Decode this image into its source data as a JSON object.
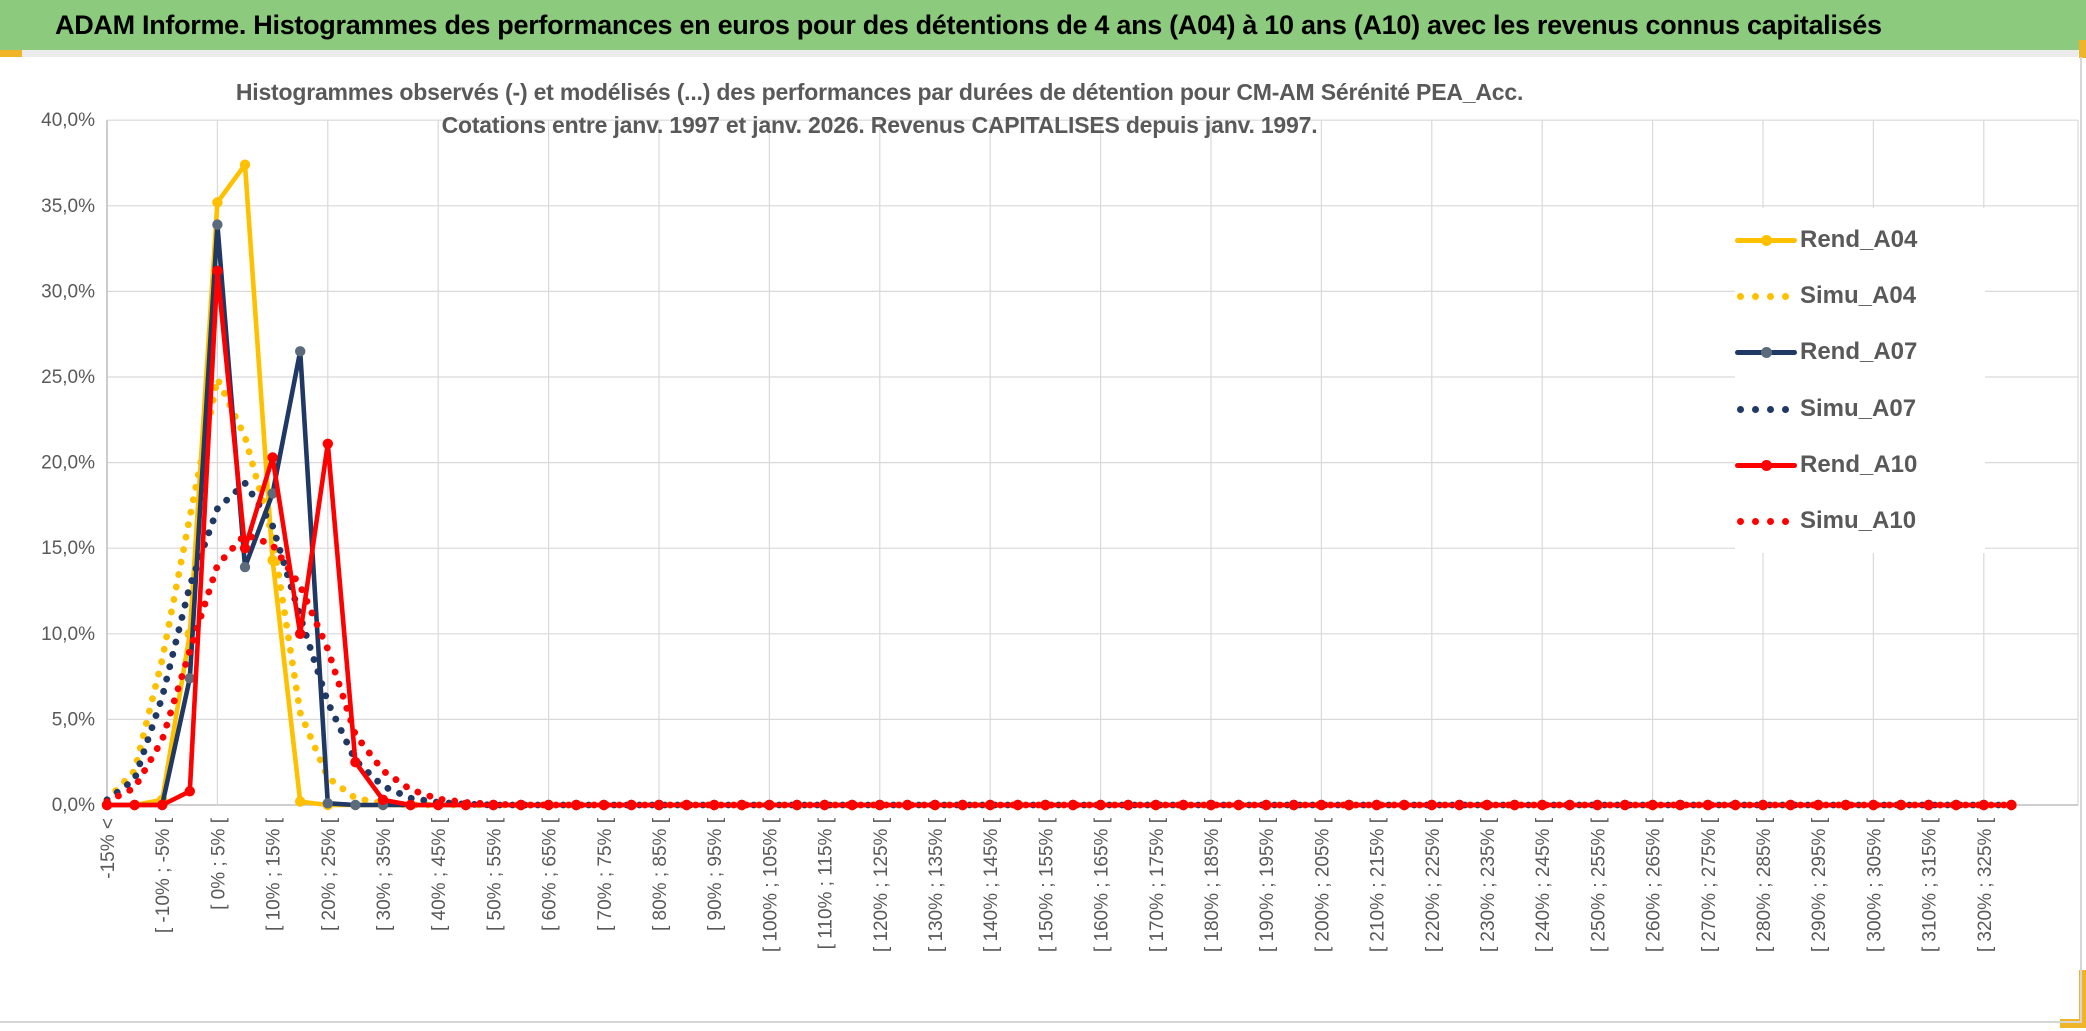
{
  "banner": {
    "title": "ADAM Informe. Histogrammes des performances en euros pour des détentions de 4 ans (A04) à 10 ans (A10) avec les revenus connus capitalisés"
  },
  "colors": {
    "banner_green": "#8CCA7D",
    "accent_yellow": "#F0B428",
    "grid": "#D9D9D9",
    "axis": "#BFBFBF",
    "text_gray": "#595959",
    "gold": "#FFC000",
    "navy": "#1F3864",
    "navy_marker": "#5B6B7C",
    "red": "#FF0000"
  },
  "chart_data": {
    "type": "line",
    "title_line1": "Histogrammes observés (-) et modélisés (...) des performances par durées de détention pour CM-AM Sérénité PEA_Acc.",
    "title_line2": "Cotations entre janv. 1997 et janv. 2026. Revenus CAPITALISES depuis janv. 1997.",
    "ylabel": "",
    "xlabel": "",
    "ylim": [
      0,
      40
    ],
    "grid": true,
    "legend_position": "right",
    "y_tick_labels": [
      "0,0%",
      "5,0%",
      "10,0%",
      "15,0%",
      "20,0%",
      "25,0%",
      "30,0%",
      "35,0%",
      "40,0%"
    ],
    "y_tick_values": [
      0,
      5,
      10,
      15,
      20,
      25,
      30,
      35,
      40
    ],
    "n_bins": 70,
    "label_every_bins": 2,
    "categories": [
      "-15% <",
      "[ -10% ; -5% [",
      "[ 0% ; 5% [",
      "[ 10% ; 15% [",
      "[ 20% ; 25% [",
      "[ 30% ; 35% [",
      "[ 40% ; 45% [",
      "[ 50% ; 55% [",
      "[ 60% ; 65% [",
      "[ 70% ; 75% [",
      "[ 80% ; 85% [",
      "[ 90% ; 95% [",
      "[ 100% ; 105% [",
      "[ 110% ; 115% [",
      "[ 120% ; 125% [",
      "[ 130% ; 135% [",
      "[ 140% ; 145% [",
      "[ 150% ; 155% [",
      "[ 160% ; 165% [",
      "[ 170% ; 175% [",
      "[ 180% ; 185% [",
      "[ 190% ; 195% [",
      "[ 200% ; 205% [",
      "[ 210% ; 215% [",
      "[ 220% ; 225% [",
      "[ 230% ; 235% [",
      "[ 240% ; 245% [",
      "[ 250% ; 255% [",
      "[ 260% ; 265% [",
      "[ 270% ; 275% [",
      "[ 280% ; 285% [",
      "[ 290% ; 295% [",
      "[ 300% ; 305% [",
      "[ 310% ; 315% [",
      "[ 320% ; 325% ["
    ],
    "series": [
      {
        "name": "Rend_A04",
        "style": "solid",
        "color": "#FFC000",
        "marker_color": "#FFC000",
        "values": [
          0,
          0,
          0.3,
          10,
          35.2,
          37.4,
          14.3,
          0.2,
          0,
          0,
          0,
          0,
          0,
          0,
          0
        ]
      },
      {
        "name": "Simu_A04",
        "style": "dotted",
        "color": "#FFC000",
        "values": [
          0.3,
          2,
          8.5,
          16.8,
          24.9,
          21.5,
          15.7,
          5.4,
          1.6,
          0.4,
          0.1,
          0,
          0,
          0,
          0
        ]
      },
      {
        "name": "Rend_A07",
        "style": "solid",
        "color": "#1F3864",
        "marker_color": "#5B6B7C",
        "values": [
          0,
          0,
          0,
          7.4,
          33.9,
          13.9,
          18.2,
          26.5,
          0.1,
          0,
          0,
          0,
          0,
          0,
          0
        ]
      },
      {
        "name": "Simu_A07",
        "style": "dotted",
        "color": "#1F3864",
        "values": [
          0.3,
          1.5,
          6.3,
          12.8,
          17.3,
          18.8,
          16.3,
          11,
          6,
          2.6,
          1.1,
          0.4,
          0.15,
          0.05,
          0
        ]
      },
      {
        "name": "Rend_A10",
        "style": "solid",
        "color": "#FF0000",
        "marker_color": "#FF0000",
        "values": [
          0,
          0,
          0,
          0.8,
          31.2,
          15,
          20.3,
          10,
          21.1,
          2.5,
          0.3,
          0,
          0,
          0,
          0
        ]
      },
      {
        "name": "Simu_A10",
        "style": "dotted",
        "color": "#FF0000",
        "values": [
          0.2,
          1,
          3.8,
          9,
          14,
          15.8,
          15.2,
          12.8,
          9.1,
          4.1,
          2,
          0.9,
          0.35,
          0.15,
          0.05
        ]
      }
    ]
  }
}
